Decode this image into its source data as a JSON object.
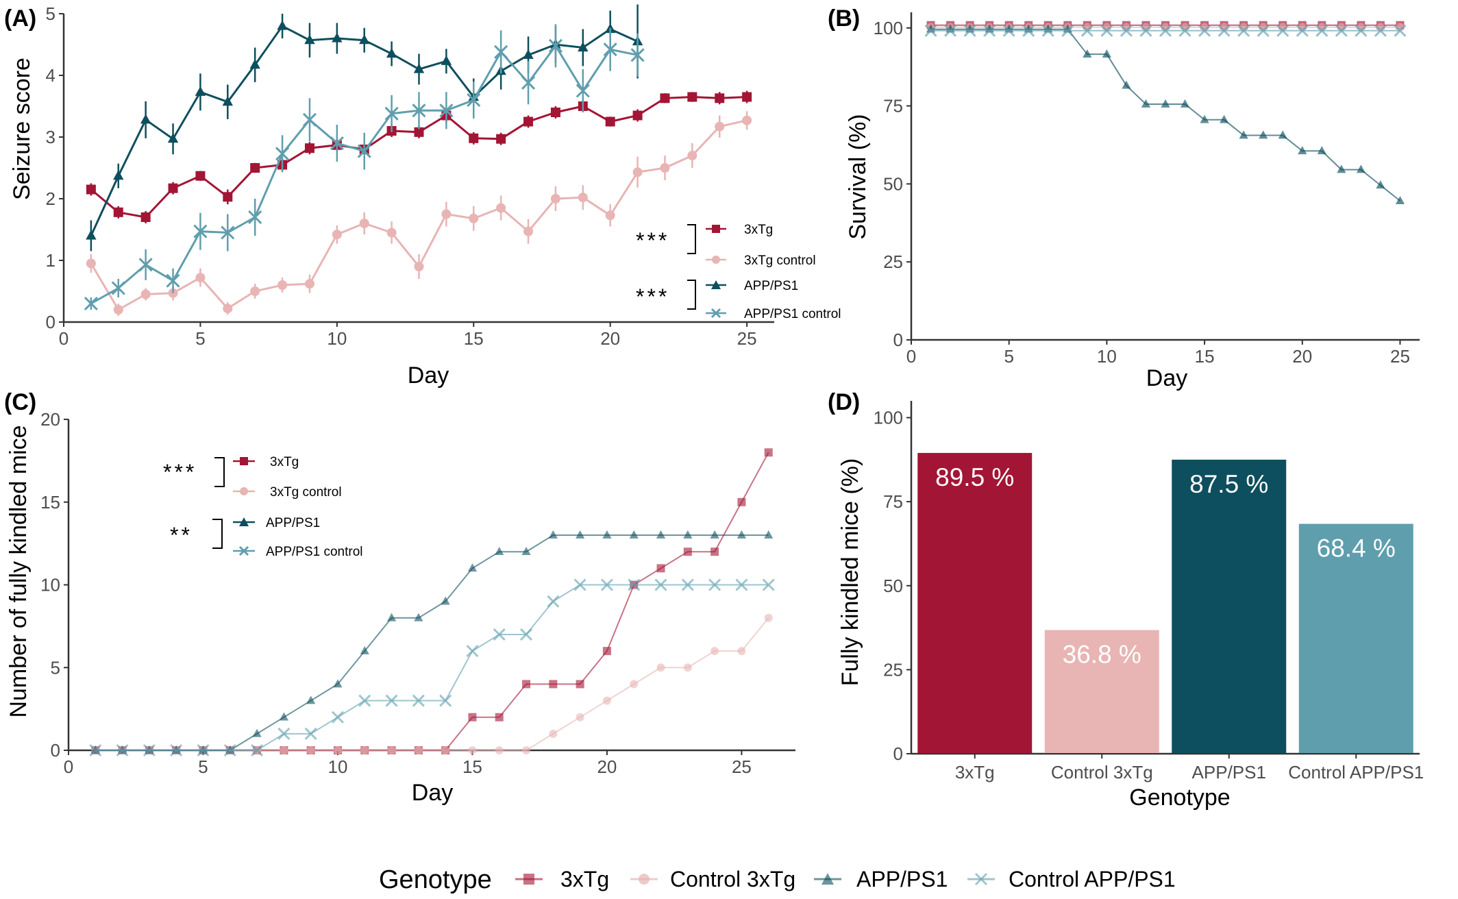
{
  "colors": {
    "3xTg": "#a31535",
    "3xTg_control": "#e8b4b4",
    "APP_PS1": "#0d4f5e",
    "APP_PS1_control": "#5f9ead",
    "axis": "#333333"
  },
  "panels": {
    "A": {
      "tag": "(A)",
      "xlabel": "Day",
      "ylabel": "Seizure score",
      "legend": [
        "3xTg",
        "3xTg control",
        "APP/PS1",
        "APP/PS1 control"
      ],
      "sig": [
        "***",
        "***"
      ]
    },
    "B": {
      "tag": "(B)",
      "xlabel": "Day",
      "ylabel": "Survival (%)"
    },
    "C": {
      "tag": "(C)",
      "xlabel": "Day",
      "ylabel": "Number of fully kindled mice",
      "legend": [
        "3xTg",
        "3xTg control",
        "APP/PS1",
        "APP/PS1 control"
      ],
      "sig": [
        "***",
        "**"
      ]
    },
    "D": {
      "tag": "(D)",
      "xlabel": "Genotype",
      "ylabel": "Fully kindled mice (%)"
    }
  },
  "shared_legend": {
    "title": "Genotype",
    "items": [
      "3xTg",
      "Control 3xTg",
      "APP/PS1",
      "Control APP/PS1"
    ]
  },
  "chart_data": [
    {
      "panel": "A",
      "type": "line",
      "xlabel": "Day",
      "ylabel": "Seizure score",
      "xlim": [
        0,
        26
      ],
      "ylim": [
        0,
        5
      ],
      "xticks": [
        0,
        5,
        10,
        15,
        20,
        25
      ],
      "yticks": [
        0,
        1,
        2,
        3,
        4,
        5
      ],
      "series": [
        {
          "name": "3xTg",
          "x": [
            1,
            2,
            3,
            4,
            5,
            6,
            7,
            8,
            9,
            10,
            11,
            12,
            13,
            14,
            15,
            16,
            17,
            18,
            19,
            20,
            21,
            22,
            23,
            24,
            25
          ],
          "y": [
            2.15,
            1.78,
            1.7,
            2.17,
            2.37,
            2.03,
            2.5,
            2.55,
            2.82,
            2.87,
            2.8,
            3.1,
            3.08,
            3.35,
            2.98,
            2.97,
            3.25,
            3.4,
            3.5,
            3.25,
            3.35,
            3.63,
            3.65,
            3.63,
            3.65
          ],
          "err": [
            0.1,
            0.1,
            0.1,
            0.1,
            0.08,
            0.12,
            0.08,
            0.1,
            0.1,
            0.1,
            0.1,
            0.1,
            0.1,
            0.12,
            0.1,
            0.1,
            0.1,
            0.1,
            0.1,
            0.08,
            0.1,
            0.08,
            0.08,
            0.1,
            0.1
          ]
        },
        {
          "name": "3xTg control",
          "x": [
            1,
            2,
            3,
            4,
            5,
            6,
            7,
            8,
            9,
            10,
            11,
            12,
            13,
            14,
            15,
            16,
            17,
            18,
            19,
            20,
            21,
            22,
            23,
            24,
            25
          ],
          "y": [
            0.95,
            0.2,
            0.45,
            0.47,
            0.72,
            0.22,
            0.5,
            0.6,
            0.62,
            1.42,
            1.6,
            1.45,
            0.9,
            1.75,
            1.68,
            1.85,
            1.47,
            2.0,
            2.02,
            1.73,
            2.43,
            2.5,
            2.7,
            3.17,
            3.27
          ],
          "err": [
            0.15,
            0.1,
            0.1,
            0.12,
            0.15,
            0.1,
            0.12,
            0.12,
            0.15,
            0.15,
            0.18,
            0.18,
            0.2,
            0.2,
            0.2,
            0.2,
            0.2,
            0.2,
            0.2,
            0.18,
            0.25,
            0.2,
            0.2,
            0.18,
            0.15
          ]
        },
        {
          "name": "APP/PS1",
          "x": [
            1,
            2,
            3,
            4,
            5,
            6,
            7,
            8,
            9,
            10,
            11,
            12,
            13,
            14,
            15,
            16,
            17,
            18,
            19,
            20,
            21
          ],
          "y": [
            1.4,
            2.37,
            3.28,
            2.97,
            3.73,
            3.57,
            4.17,
            4.8,
            4.57,
            4.6,
            4.57,
            4.35,
            4.1,
            4.23,
            3.65,
            4.07,
            4.33,
            4.5,
            4.45,
            4.75,
            4.55
          ],
          "err": [
            0.25,
            0.2,
            0.3,
            0.25,
            0.3,
            0.28,
            0.28,
            0.2,
            0.28,
            0.25,
            0.2,
            0.2,
            0.25,
            0.2,
            0.3,
            0.3,
            0.3,
            0.3,
            0.3,
            0.3,
            0.6
          ]
        },
        {
          "name": "APP/PS1 control",
          "x": [
            1,
            2,
            3,
            4,
            5,
            6,
            7,
            8,
            9,
            10,
            11,
            12,
            13,
            14,
            15,
            16,
            17,
            18,
            19,
            20,
            21
          ],
          "y": [
            0.3,
            0.55,
            0.93,
            0.67,
            1.47,
            1.45,
            1.7,
            2.73,
            3.28,
            2.9,
            2.77,
            3.38,
            3.43,
            3.43,
            3.6,
            4.38,
            3.88,
            4.48,
            3.75,
            4.42,
            4.33
          ],
          "err": [
            0.1,
            0.15,
            0.25,
            0.2,
            0.3,
            0.3,
            0.3,
            0.3,
            0.35,
            0.3,
            0.3,
            0.3,
            0.3,
            0.3,
            0.3,
            0.35,
            0.35,
            0.35,
            0.35,
            0.35,
            0.35
          ]
        }
      ]
    },
    {
      "panel": "B",
      "type": "line",
      "xlabel": "Day",
      "ylabel": "Survival (%)",
      "xlim": [
        0,
        26
      ],
      "ylim": [
        0,
        105
      ],
      "xticks": [
        0,
        5,
        10,
        15,
        20,
        25
      ],
      "yticks": [
        0,
        25,
        50,
        75,
        100
      ],
      "series": [
        {
          "name": "3xTg",
          "x": [
            1,
            2,
            3,
            4,
            5,
            6,
            7,
            8,
            9,
            10,
            11,
            12,
            13,
            14,
            15,
            16,
            17,
            18,
            19,
            20,
            21,
            22,
            23,
            24,
            25
          ],
          "y": [
            100,
            100,
            100,
            100,
            100,
            100,
            100,
            100,
            100,
            100,
            100,
            100,
            100,
            100,
            100,
            100,
            100,
            100,
            100,
            100,
            100,
            100,
            100,
            100,
            100
          ]
        },
        {
          "name": "3xTg control",
          "x": [
            1,
            2,
            3,
            4,
            5,
            6,
            7,
            8,
            9,
            10,
            11,
            12,
            13,
            14,
            15,
            16,
            17,
            18,
            19,
            20,
            21,
            22,
            23,
            24,
            25
          ],
          "y": [
            100,
            100,
            100,
            100,
            100,
            100,
            100,
            100,
            100,
            100,
            100,
            100,
            100,
            100,
            100,
            100,
            100,
            100,
            100,
            100,
            100,
            100,
            100,
            100,
            100
          ]
        },
        {
          "name": "APP/PS1",
          "x": [
            1,
            2,
            3,
            4,
            5,
            6,
            7,
            8,
            9,
            10,
            11,
            12,
            13,
            14,
            15,
            16,
            17,
            18,
            19,
            20,
            21,
            22,
            23,
            24,
            25
          ],
          "y": [
            100,
            100,
            100,
            100,
            100,
            100,
            100,
            100,
            92,
            92,
            82,
            76,
            76,
            76,
            71,
            71,
            66,
            66,
            66,
            61,
            61,
            55,
            55,
            50,
            45
          ]
        },
        {
          "name": "APP/PS1 control",
          "x": [
            1,
            2,
            3,
            4,
            5,
            6,
            7,
            8,
            9,
            10,
            11,
            12,
            13,
            14,
            15,
            16,
            17,
            18,
            19,
            20,
            21,
            22,
            23,
            24,
            25
          ],
          "y": [
            100,
            100,
            100,
            100,
            100,
            100,
            100,
            100,
            100,
            100,
            100,
            100,
            100,
            100,
            100,
            100,
            100,
            100,
            100,
            100,
            100,
            100,
            100,
            100,
            100
          ]
        }
      ]
    },
    {
      "panel": "C",
      "type": "line",
      "xlabel": "Day",
      "ylabel": "Number of fully kindled mice",
      "xlim": [
        0,
        27
      ],
      "ylim": [
        0,
        20
      ],
      "xticks": [
        0,
        5,
        10,
        15,
        20,
        25
      ],
      "yticks": [
        0,
        5,
        10,
        15,
        20
      ],
      "series": [
        {
          "name": "3xTg",
          "x": [
            1,
            2,
            3,
            4,
            5,
            6,
            7,
            8,
            9,
            10,
            11,
            12,
            13,
            14,
            15,
            16,
            17,
            18,
            19,
            20,
            21,
            22,
            23,
            24,
            25,
            26
          ],
          "y": [
            0,
            0,
            0,
            0,
            0,
            0,
            0,
            0,
            0,
            0,
            0,
            0,
            0,
            0,
            2,
            2,
            4,
            4,
            4,
            6,
            10,
            11,
            12,
            12,
            15,
            18
          ]
        },
        {
          "name": "3xTg control",
          "x": [
            1,
            2,
            3,
            4,
            5,
            6,
            7,
            8,
            9,
            10,
            11,
            12,
            13,
            14,
            15,
            16,
            17,
            18,
            19,
            20,
            21,
            22,
            23,
            24,
            25,
            26
          ],
          "y": [
            0,
            0,
            0,
            0,
            0,
            0,
            0,
            0,
            0,
            0,
            0,
            0,
            0,
            0,
            0,
            0,
            0,
            1,
            2,
            3,
            4,
            5,
            5,
            6,
            6,
            8
          ]
        },
        {
          "name": "APP/PS1",
          "x": [
            1,
            2,
            3,
            4,
            5,
            6,
            7,
            8,
            9,
            10,
            11,
            12,
            13,
            14,
            15,
            16,
            17,
            18,
            19,
            20,
            21,
            22,
            23,
            24,
            25,
            26
          ],
          "y": [
            0,
            0,
            0,
            0,
            0,
            0,
            1,
            2,
            3,
            4,
            6,
            8,
            8,
            9,
            11,
            12,
            12,
            13,
            13,
            13,
            13,
            13,
            13,
            13,
            13,
            13
          ]
        },
        {
          "name": "APP/PS1 control",
          "x": [
            1,
            2,
            3,
            4,
            5,
            6,
            7,
            8,
            9,
            10,
            11,
            12,
            13,
            14,
            15,
            16,
            17,
            18,
            19,
            20,
            21,
            22,
            23,
            24,
            25,
            26
          ],
          "y": [
            0,
            0,
            0,
            0,
            0,
            0,
            0,
            1,
            1,
            2,
            3,
            3,
            3,
            3,
            6,
            7,
            7,
            9,
            10,
            10,
            10,
            10,
            10,
            10,
            10,
            10
          ]
        }
      ]
    },
    {
      "panel": "D",
      "type": "bar",
      "xlabel": "Genotype",
      "ylabel": "Fully kindled mice (%)",
      "ylim": [
        0,
        100
      ],
      "yticks": [
        0,
        25,
        50,
        75,
        100
      ],
      "categories": [
        "3xTg",
        "Control 3xTg",
        "APP/PS1",
        "Control APP/PS1"
      ],
      "values": [
        89.5,
        36.8,
        87.5,
        68.4
      ],
      "labels": [
        "89.5 %",
        "36.8 %",
        "87.5 %",
        "68.4 %"
      ]
    }
  ]
}
